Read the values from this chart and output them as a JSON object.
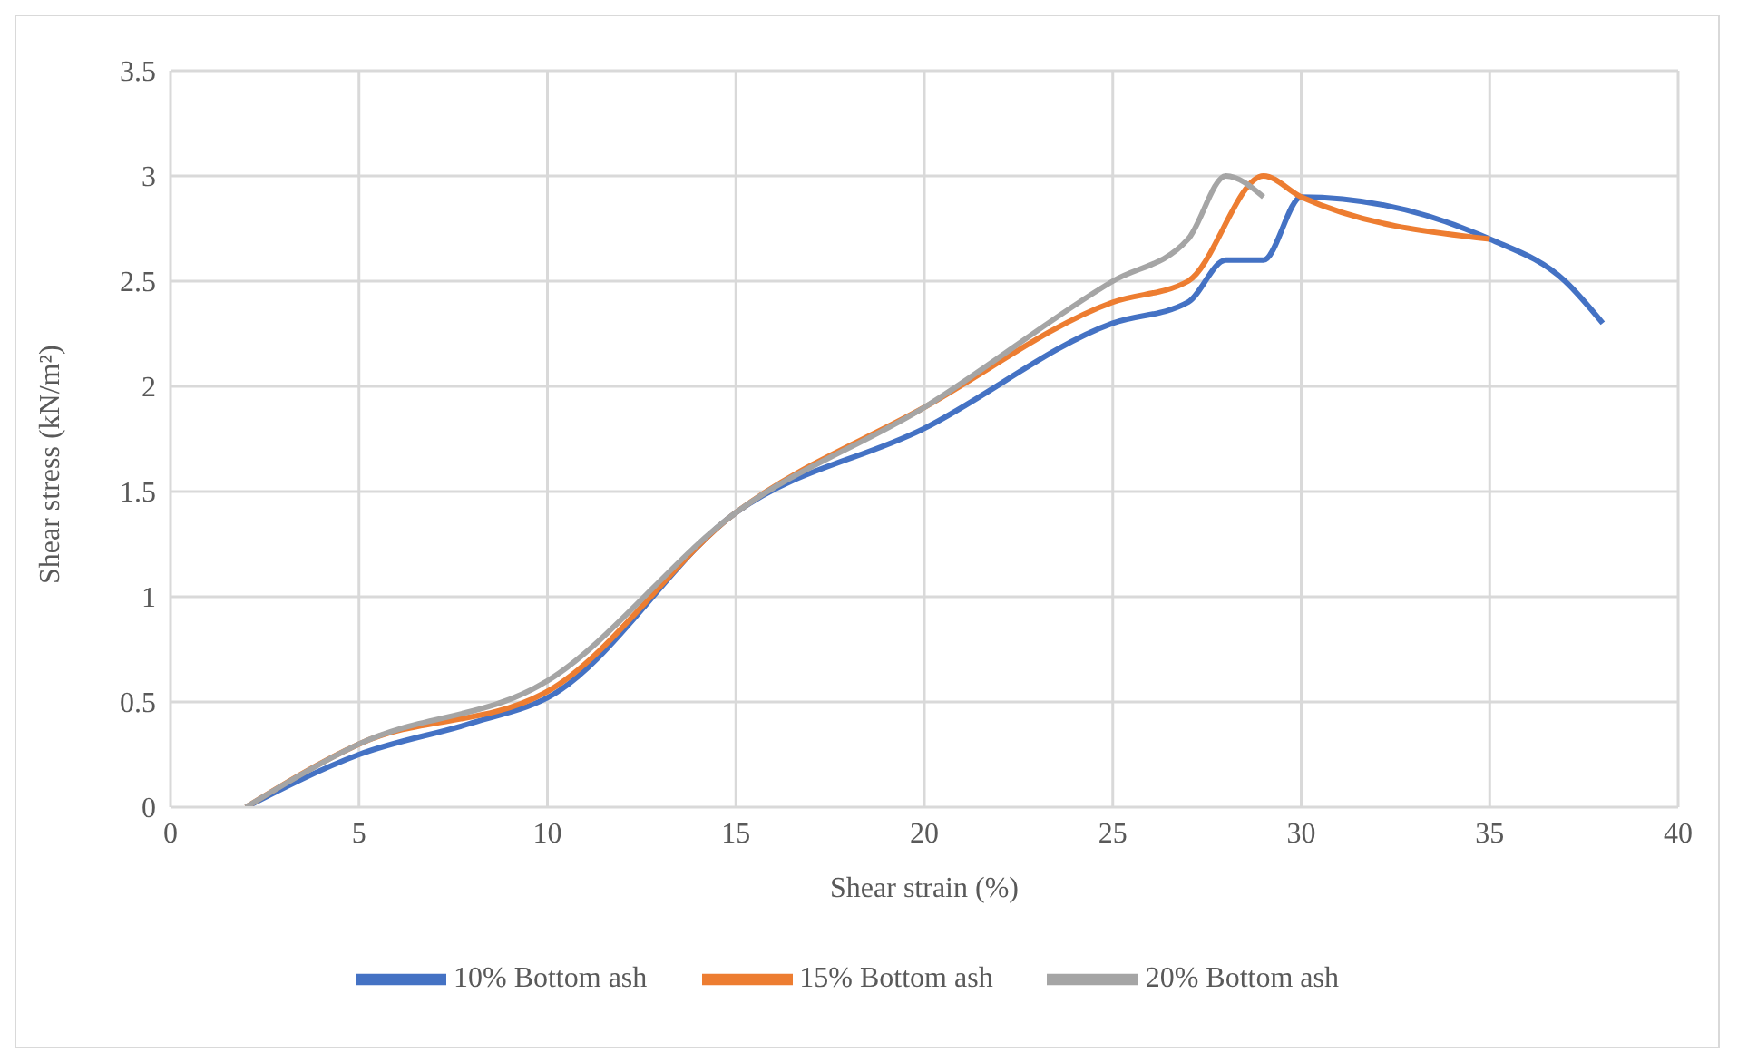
{
  "chart_data": {
    "type": "line",
    "xlabel": "Shear strain (%)",
    "ylabel": "Shear stress (kN/m²)",
    "xlim": [
      0,
      40
    ],
    "xticks": [
      0,
      5,
      10,
      15,
      20,
      25,
      30,
      35,
      40
    ],
    "ylim": [
      0,
      3.5
    ],
    "yticks": [
      0,
      0.5,
      1,
      1.5,
      2,
      2.5,
      3,
      3.5
    ],
    "grid": true,
    "legend": "bottom",
    "marker": "none",
    "line_style": "solid",
    "series": [
      {
        "name": "10% Bottom ash",
        "color": "#4472c4",
        "x": [
          2,
          5,
          8,
          10,
          15,
          20,
          25,
          27,
          28,
          29,
          30,
          35,
          37,
          38
        ],
        "values": [
          0,
          0.25,
          0.4,
          0.52,
          1.4,
          1.8,
          2.3,
          2.4,
          2.6,
          2.6,
          2.9,
          2.7,
          2.5,
          2.3
        ]
      },
      {
        "name": "15% Bottom ash",
        "color": "#ed7d31",
        "x": [
          2,
          5,
          10,
          15,
          20,
          25,
          27,
          29,
          30,
          35
        ],
        "values": [
          0,
          0.3,
          0.55,
          1.4,
          1.9,
          2.4,
          2.5,
          3.0,
          2.9,
          2.7
        ]
      },
      {
        "name": "20% Bottom ash",
        "color": "#a5a5a5",
        "x": [
          2,
          5,
          10,
          15,
          20,
          25,
          27,
          28,
          29
        ],
        "values": [
          0,
          0.3,
          0.6,
          1.4,
          1.9,
          2.5,
          2.7,
          3.0,
          2.9
        ]
      }
    ]
  }
}
